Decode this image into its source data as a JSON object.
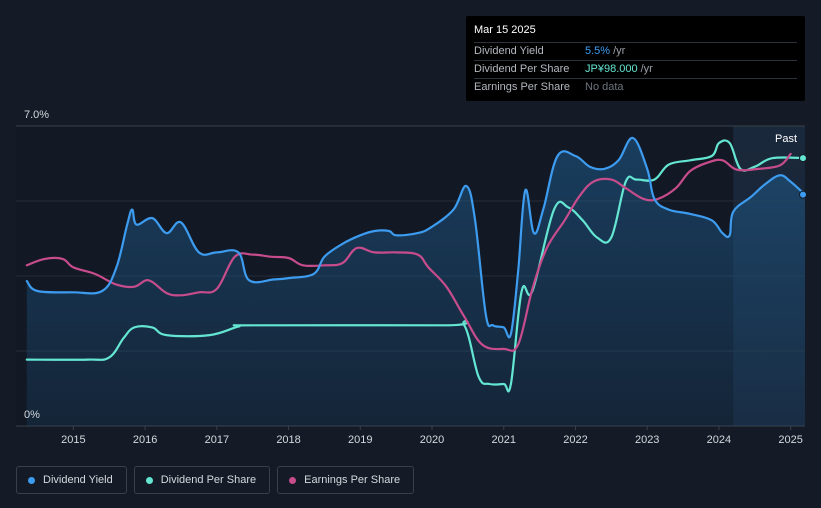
{
  "tooltip": {
    "date": "Mar 15 2025",
    "rows": [
      {
        "label": "Dividend Yield",
        "value": "5.5%",
        "unit": "/yr",
        "color": "#3d9cf0"
      },
      {
        "label": "Dividend Per Share",
        "value": "JP¥98.000",
        "unit": "/yr",
        "color": "#64e6d2"
      },
      {
        "label": "Earnings Per Share",
        "value": "No data",
        "unit": "",
        "color": "#6e747c"
      }
    ]
  },
  "legend": [
    {
      "label": "Dividend Yield",
      "color": "#3d9cf0"
    },
    {
      "label": "Dividend Per Share",
      "color": "#64e6d2"
    },
    {
      "label": "Earnings Per Share",
      "color": "#c74c8c"
    }
  ],
  "chart_data": {
    "type": "line",
    "title": "",
    "xlabel": "",
    "ylabel": "",
    "ylim": [
      0,
      7.0
    ],
    "xlim": [
      2014.2,
      2025.2
    ],
    "y_tick_labels": [
      "7.0%",
      "0%"
    ],
    "x_tick_labels": [
      "2015",
      "2016",
      "2017",
      "2018",
      "2019",
      "2020",
      "2021",
      "2022",
      "2023",
      "2024",
      "2025"
    ],
    "past_label": "Past",
    "past_region_start": 2024.2,
    "grid": true,
    "legend_position": "bottom-left",
    "series": [
      {
        "name": "Dividend Yield",
        "color": "#3d9cf0",
        "area": true,
        "points": [
          [
            2014.35,
            3.38
          ],
          [
            2014.5,
            3.15
          ],
          [
            2015.0,
            3.12
          ],
          [
            2015.4,
            3.15
          ],
          [
            2015.6,
            3.7
          ],
          [
            2015.75,
            4.7
          ],
          [
            2015.82,
            5.05
          ],
          [
            2015.88,
            4.7
          ],
          [
            2016.1,
            4.85
          ],
          [
            2016.3,
            4.5
          ],
          [
            2016.5,
            4.75
          ],
          [
            2016.75,
            4.05
          ],
          [
            2017.0,
            4.05
          ],
          [
            2017.3,
            4.05
          ],
          [
            2017.45,
            3.4
          ],
          [
            2017.8,
            3.42
          ],
          [
            2018.0,
            3.45
          ],
          [
            2018.35,
            3.55
          ],
          [
            2018.5,
            3.95
          ],
          [
            2018.75,
            4.25
          ],
          [
            2019.0,
            4.45
          ],
          [
            2019.2,
            4.55
          ],
          [
            2019.4,
            4.55
          ],
          [
            2019.5,
            4.45
          ],
          [
            2019.8,
            4.5
          ],
          [
            2020.0,
            4.65
          ],
          [
            2020.3,
            5.05
          ],
          [
            2020.48,
            5.6
          ],
          [
            2020.6,
            4.8
          ],
          [
            2020.75,
            2.6
          ],
          [
            2020.85,
            2.35
          ],
          [
            2021.0,
            2.3
          ],
          [
            2021.1,
            2.15
          ],
          [
            2021.2,
            3.6
          ],
          [
            2021.3,
            5.5
          ],
          [
            2021.42,
            4.5
          ],
          [
            2021.55,
            5.05
          ],
          [
            2021.75,
            6.3
          ],
          [
            2022.0,
            6.3
          ],
          [
            2022.2,
            6.05
          ],
          [
            2022.4,
            6.0
          ],
          [
            2022.6,
            6.2
          ],
          [
            2022.8,
            6.72
          ],
          [
            2023.0,
            6.0
          ],
          [
            2023.1,
            5.3
          ],
          [
            2023.3,
            5.05
          ],
          [
            2023.6,
            4.95
          ],
          [
            2023.9,
            4.8
          ],
          [
            2024.05,
            4.5
          ],
          [
            2024.15,
            4.45
          ],
          [
            2024.2,
            5.0
          ],
          [
            2024.45,
            5.35
          ],
          [
            2024.65,
            5.65
          ],
          [
            2024.85,
            5.85
          ],
          [
            2025.0,
            5.7
          ],
          [
            2025.2,
            5.4
          ]
        ]
      },
      {
        "name": "Dividend Per Share",
        "color": "#64e6d2",
        "area": false,
        "points": [
          [
            2014.35,
            1.55
          ],
          [
            2015.2,
            1.55
          ],
          [
            2015.5,
            1.6
          ],
          [
            2015.7,
            2.05
          ],
          [
            2015.85,
            2.3
          ],
          [
            2016.1,
            2.3
          ],
          [
            2016.3,
            2.12
          ],
          [
            2016.9,
            2.12
          ],
          [
            2017.3,
            2.32
          ],
          [
            2017.5,
            2.35
          ],
          [
            2020.2,
            2.35
          ],
          [
            2020.45,
            2.35
          ],
          [
            2020.65,
            1.15
          ],
          [
            2020.8,
            0.98
          ],
          [
            2021.0,
            0.98
          ],
          [
            2021.1,
            0.98
          ],
          [
            2021.25,
            3.15
          ],
          [
            2021.4,
            3.15
          ],
          [
            2021.7,
            5.05
          ],
          [
            2021.9,
            5.1
          ],
          [
            2022.1,
            4.8
          ],
          [
            2022.3,
            4.4
          ],
          [
            2022.5,
            4.4
          ],
          [
            2022.7,
            5.7
          ],
          [
            2022.85,
            5.75
          ],
          [
            2023.1,
            5.75
          ],
          [
            2023.3,
            6.1
          ],
          [
            2023.6,
            6.2
          ],
          [
            2023.9,
            6.3
          ],
          [
            2024.0,
            6.6
          ],
          [
            2024.15,
            6.6
          ],
          [
            2024.3,
            6.0
          ],
          [
            2024.5,
            6.05
          ],
          [
            2024.75,
            6.25
          ],
          [
            2025.2,
            6.25
          ]
        ]
      },
      {
        "name": "Earnings Per Share",
        "color": "#c74c8c",
        "area": false,
        "points": [
          [
            2014.35,
            3.75
          ],
          [
            2014.6,
            3.9
          ],
          [
            2014.85,
            3.9
          ],
          [
            2015.0,
            3.7
          ],
          [
            2015.3,
            3.55
          ],
          [
            2015.6,
            3.3
          ],
          [
            2015.85,
            3.25
          ],
          [
            2016.05,
            3.4
          ],
          [
            2016.3,
            3.1
          ],
          [
            2016.5,
            3.05
          ],
          [
            2016.75,
            3.12
          ],
          [
            2017.0,
            3.2
          ],
          [
            2017.25,
            3.95
          ],
          [
            2017.5,
            4.0
          ],
          [
            2017.75,
            3.95
          ],
          [
            2018.0,
            3.92
          ],
          [
            2018.2,
            3.75
          ],
          [
            2018.5,
            3.75
          ],
          [
            2018.75,
            3.8
          ],
          [
            2018.95,
            4.15
          ],
          [
            2019.2,
            4.05
          ],
          [
            2019.5,
            4.05
          ],
          [
            2019.8,
            4.0
          ],
          [
            2019.95,
            3.7
          ],
          [
            2020.2,
            3.25
          ],
          [
            2020.45,
            2.55
          ],
          [
            2020.7,
            1.9
          ],
          [
            2021.0,
            1.8
          ],
          [
            2021.2,
            1.9
          ],
          [
            2021.4,
            3.2
          ],
          [
            2021.6,
            4.15
          ],
          [
            2021.85,
            4.8
          ],
          [
            2022.05,
            5.35
          ],
          [
            2022.25,
            5.7
          ],
          [
            2022.5,
            5.75
          ],
          [
            2022.7,
            5.55
          ],
          [
            2022.95,
            5.3
          ],
          [
            2023.15,
            5.3
          ],
          [
            2023.4,
            5.55
          ],
          [
            2023.6,
            5.95
          ],
          [
            2023.85,
            6.15
          ],
          [
            2024.05,
            6.2
          ],
          [
            2024.25,
            5.98
          ],
          [
            2024.55,
            6.0
          ],
          [
            2024.85,
            6.08
          ],
          [
            2025.0,
            6.35
          ]
        ]
      }
    ]
  }
}
